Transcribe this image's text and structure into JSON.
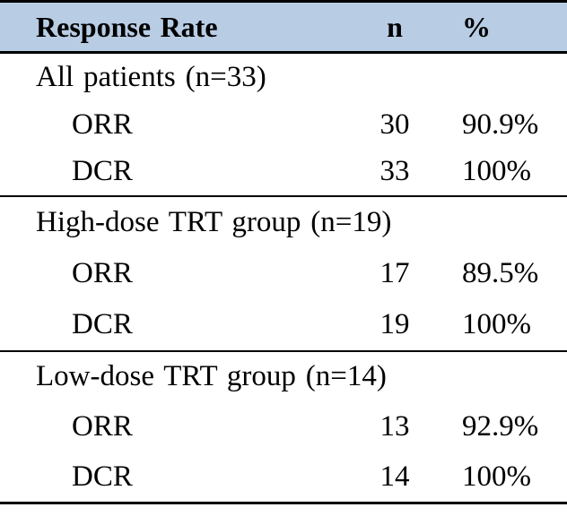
{
  "table": {
    "header": {
      "response_rate": "Response Rate",
      "n": "n",
      "percent": "%"
    },
    "sections": [
      {
        "group": "All patients (n=33)",
        "rows": [
          {
            "label": "ORR",
            "n": "30",
            "pct": "90.9%"
          },
          {
            "label": "DCR",
            "n": "33",
            "pct": "100%"
          }
        ]
      },
      {
        "group": "High-dose TRT group (n=19)",
        "rows": [
          {
            "label": "ORR",
            "n": "17",
            "pct": "89.5%"
          },
          {
            "label": "DCR",
            "n": "19",
            "pct": "100%"
          }
        ]
      },
      {
        "group": "Low-dose TRT group (n=14)",
        "rows": [
          {
            "label": "ORR",
            "n": "13",
            "pct": "92.9%"
          },
          {
            "label": "DCR",
            "n": "14",
            "pct": "100%"
          }
        ]
      }
    ],
    "colors": {
      "header_bg": "#b8cce4",
      "border": "#000000",
      "text": "#000000",
      "background": "#ffffff"
    }
  }
}
